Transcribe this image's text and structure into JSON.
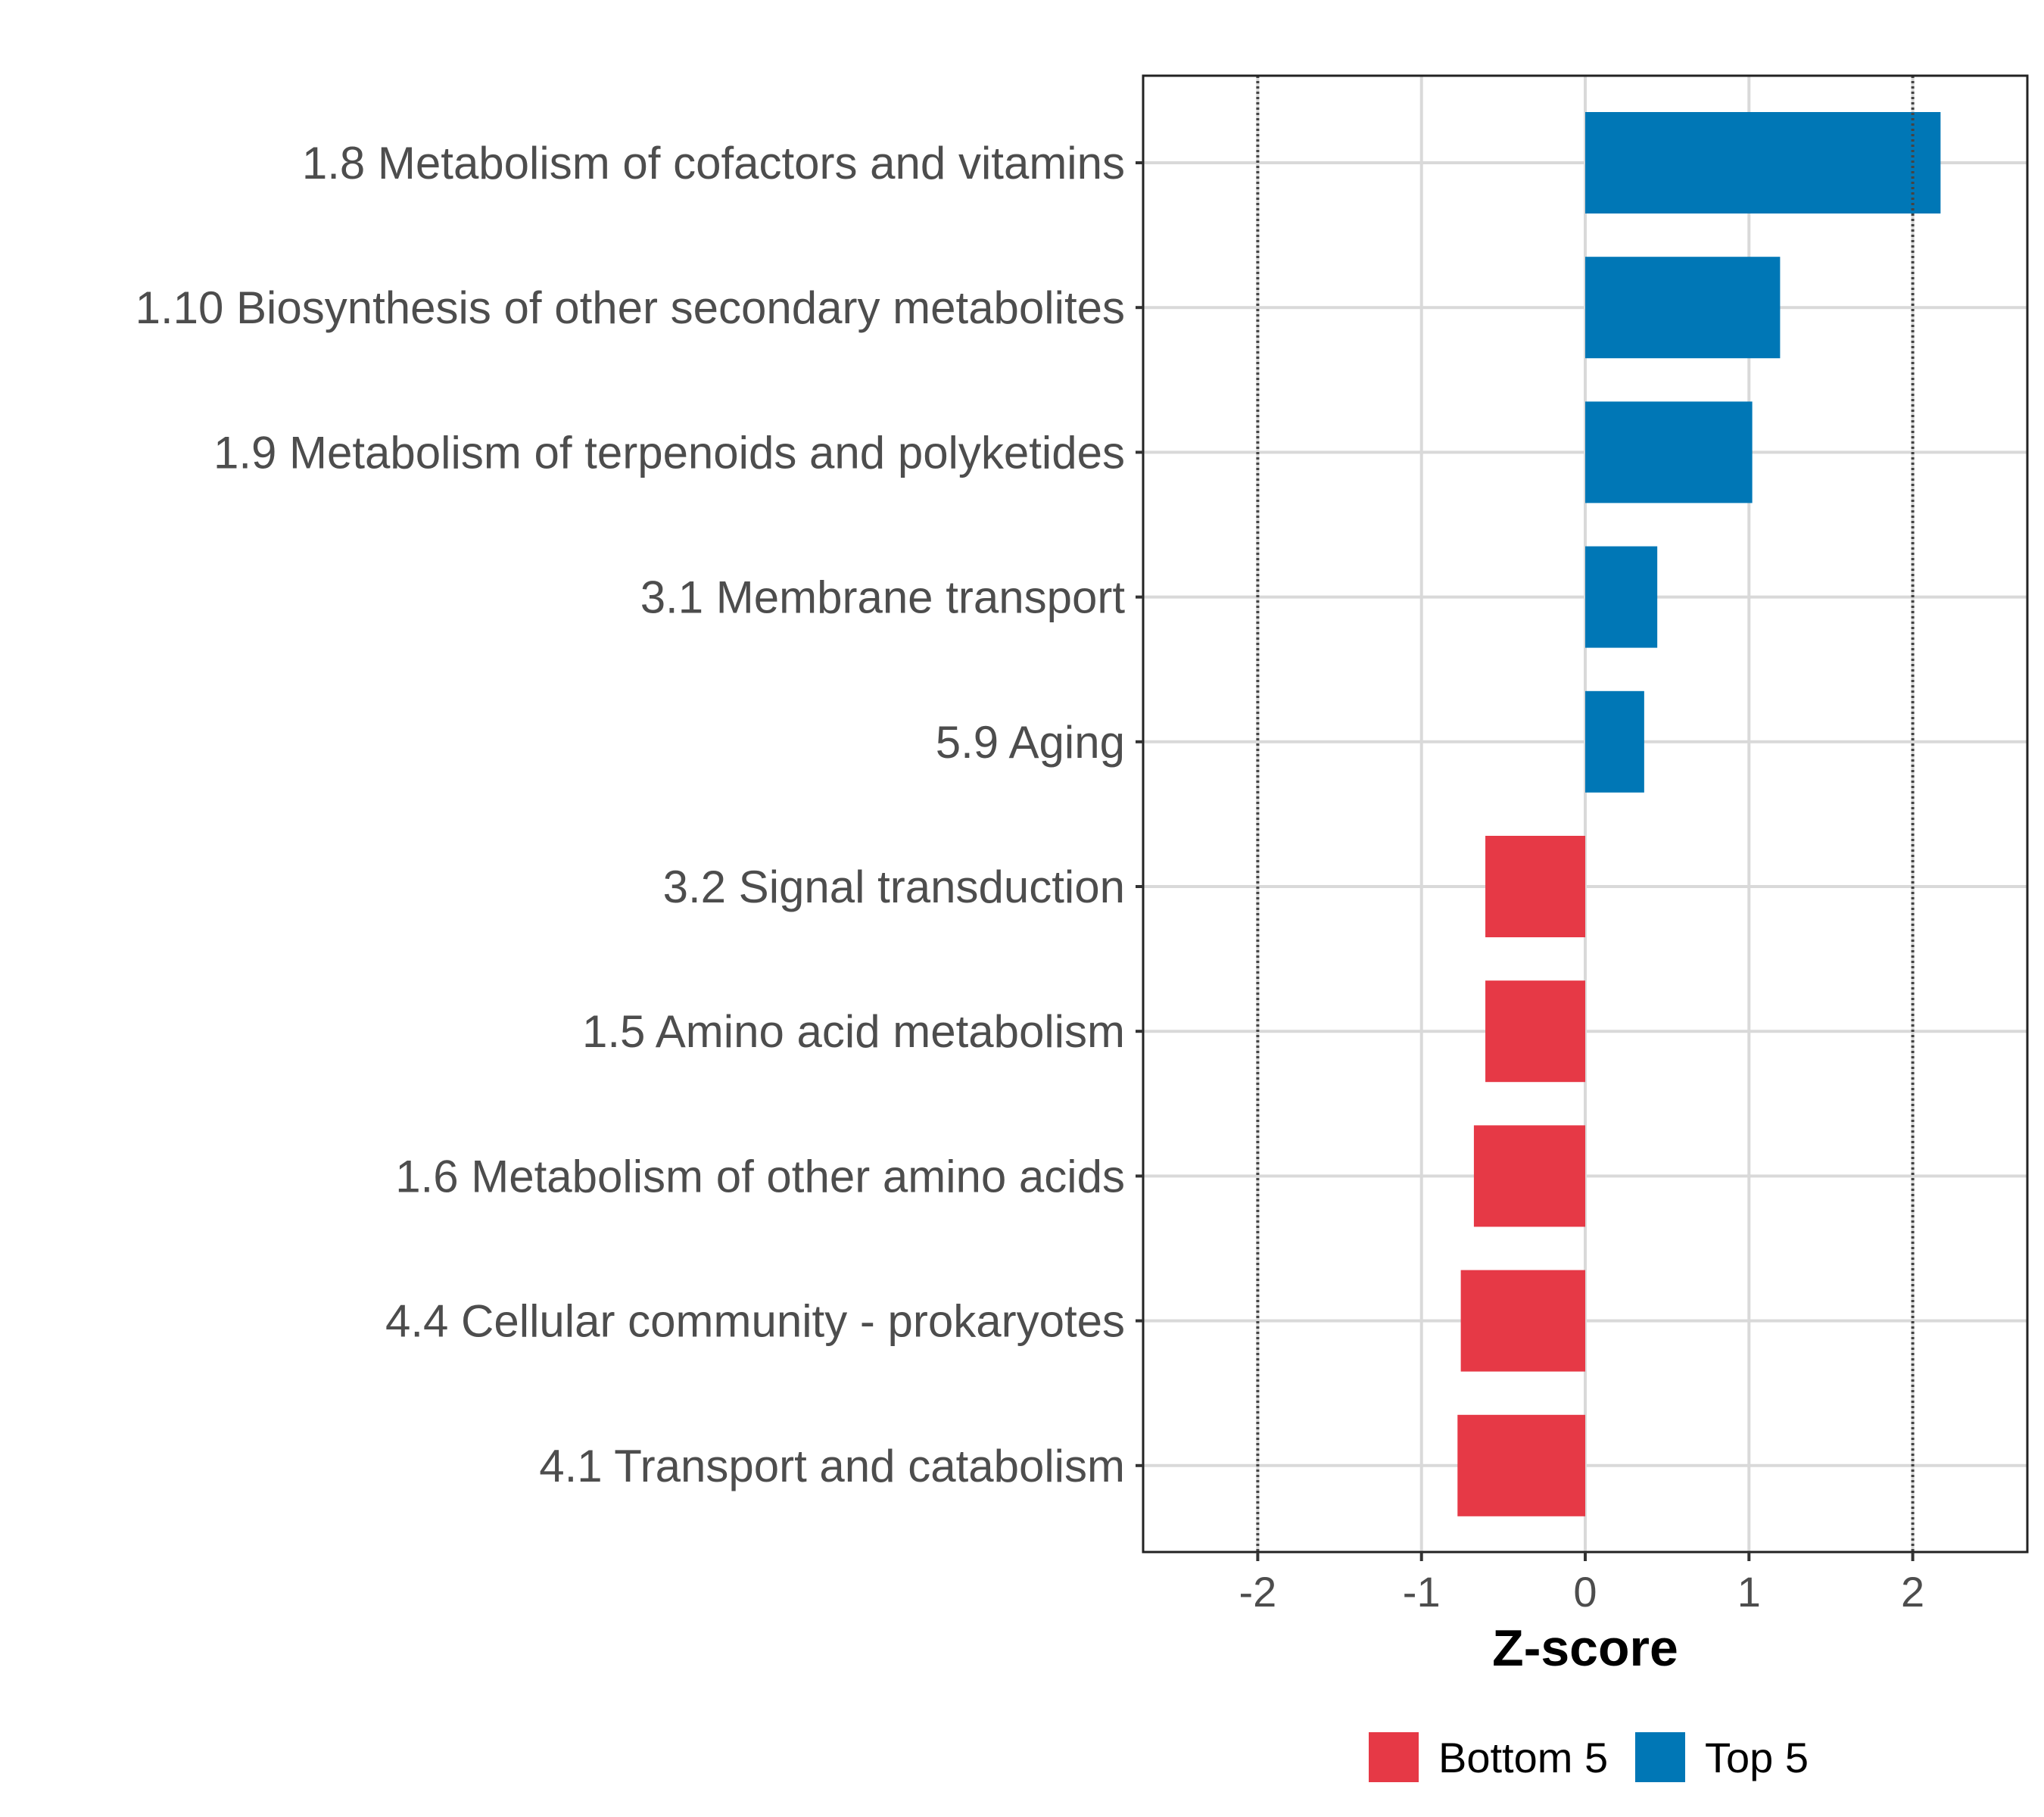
{
  "chart_data": {
    "type": "bar",
    "orientation": "horizontal",
    "xlabel": "Z-score",
    "ylabel": "",
    "xlim": [
      -2.7,
      2.7
    ],
    "x_ticks": [
      -2,
      -1,
      0,
      1,
      2
    ],
    "x_tick_labels": [
      "-2",
      "-1",
      "0",
      "1",
      "2"
    ],
    "reference_lines": [
      -2,
      2
    ],
    "grid": true,
    "categories": [
      "1.8 Metabolism of cofactors and vitamins",
      "1.10 Biosynthesis of other secondary metabolites",
      "1.9 Metabolism of terpenoids and polyketides",
      "3.1 Membrane transport",
      "5.9 Aging",
      "3.2 Signal transduction",
      "1.5 Amino acid metabolism",
      "1.6 Metabolism of other amino acids",
      "4.4 Cellular community - prokaryotes",
      "4.1 Transport and catabolism"
    ],
    "values": [
      2.17,
      1.19,
      1.02,
      0.44,
      0.36,
      -0.61,
      -0.61,
      -0.68,
      -0.76,
      -0.78
    ],
    "groups": [
      "Top 5",
      "Top 5",
      "Top 5",
      "Top 5",
      "Top 5",
      "Bottom 5",
      "Bottom 5",
      "Bottom 5",
      "Bottom 5",
      "Bottom 5"
    ],
    "legend": [
      {
        "label": "Bottom 5",
        "color": "#E63946"
      },
      {
        "label": "Top 5",
        "color": "#0077B6"
      }
    ],
    "legend_position": "bottom"
  }
}
